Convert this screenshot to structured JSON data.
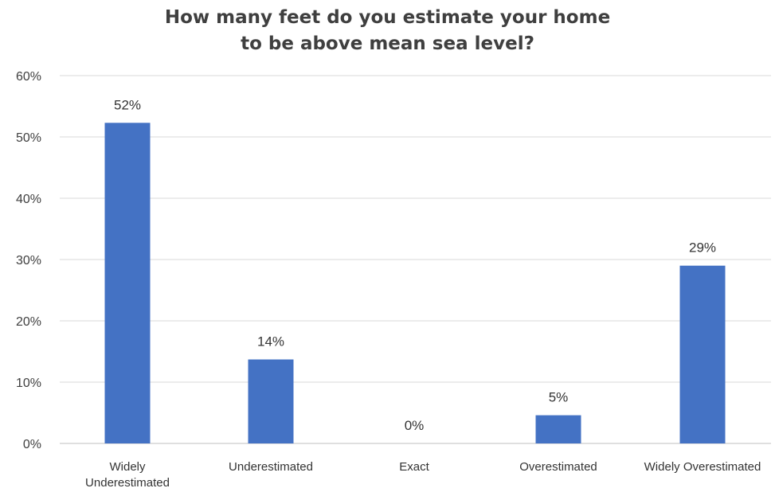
{
  "chart_data": {
    "type": "bar",
    "title": "How many feet do you estimate your home to be above mean sea level?",
    "title_lines": [
      "How many feet do you estimate your home",
      "to be above mean sea level?"
    ],
    "categories": [
      "Widely Underestimated",
      "Underestimated",
      "Exact",
      "Overestimated",
      "Widely Overestimated"
    ],
    "category_label_lines": [
      [
        "Widely",
        "Underestimated"
      ],
      [
        "Underestimated"
      ],
      [
        "Exact"
      ],
      [
        "Overestimated"
      ],
      [
        "Widely Overestimated"
      ]
    ],
    "values": [
      52.3,
      13.7,
      0,
      4.6,
      29
    ],
    "data_labels": [
      "52%",
      "14%",
      "0%",
      "5%",
      "29%"
    ],
    "y_ticks": [
      0,
      10,
      20,
      30,
      40,
      50,
      60
    ],
    "y_tick_labels": [
      "0%",
      "10%",
      "20%",
      "30%",
      "40%",
      "50%",
      "60%"
    ],
    "ylim": [
      0,
      60
    ],
    "xlabel": "",
    "ylabel": "",
    "grid": true,
    "legend": "none",
    "bar_color": "#4472c4"
  }
}
